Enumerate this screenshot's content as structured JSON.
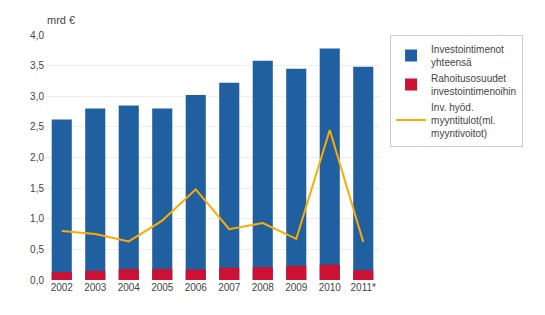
{
  "chart_data": {
    "type": "bar",
    "ylabel": "mrd €",
    "categories": [
      "2002",
      "2003",
      "2004",
      "2005",
      "2006",
      "2007",
      "2008",
      "2009",
      "2010",
      "2011*"
    ],
    "series": [
      {
        "name": "Investointimenot\nyhteensä",
        "type": "bar",
        "color": "#2060A0",
        "values": [
          2.62,
          2.8,
          2.85,
          2.8,
          3.02,
          3.22,
          3.58,
          3.45,
          3.78,
          3.48
        ]
      },
      {
        "name": "Rahoitusosuudet\ninvestointimenoihin",
        "type": "bar",
        "color": "#CC1133",
        "values": [
          0.13,
          0.15,
          0.18,
          0.18,
          0.17,
          0.2,
          0.21,
          0.23,
          0.25,
          0.16
        ]
      },
      {
        "name": "Inv. hyöd.\nmyyntitulot(ml.\nmyyntivoitot)",
        "type": "line",
        "color": "#FFAA00",
        "values": [
          0.8,
          0.75,
          0.63,
          0.97,
          1.48,
          0.83,
          0.93,
          0.67,
          2.45,
          0.62
        ]
      }
    ],
    "ylim": [
      0,
      4.0
    ],
    "yticks": [
      {
        "value": 0.0,
        "label": "0,0"
      },
      {
        "value": 0.5,
        "label": "0,5"
      },
      {
        "value": 1.0,
        "label": "1,0"
      },
      {
        "value": 1.5,
        "label": "1,5"
      },
      {
        "value": 2.0,
        "label": "2,0"
      },
      {
        "value": 2.5,
        "label": "2,5"
      },
      {
        "value": 3.0,
        "label": "3,0"
      },
      {
        "value": 3.5,
        "label": "3,5"
      },
      {
        "value": 4.0,
        "label": "4,0"
      }
    ],
    "grid": true,
    "legend": "right"
  }
}
